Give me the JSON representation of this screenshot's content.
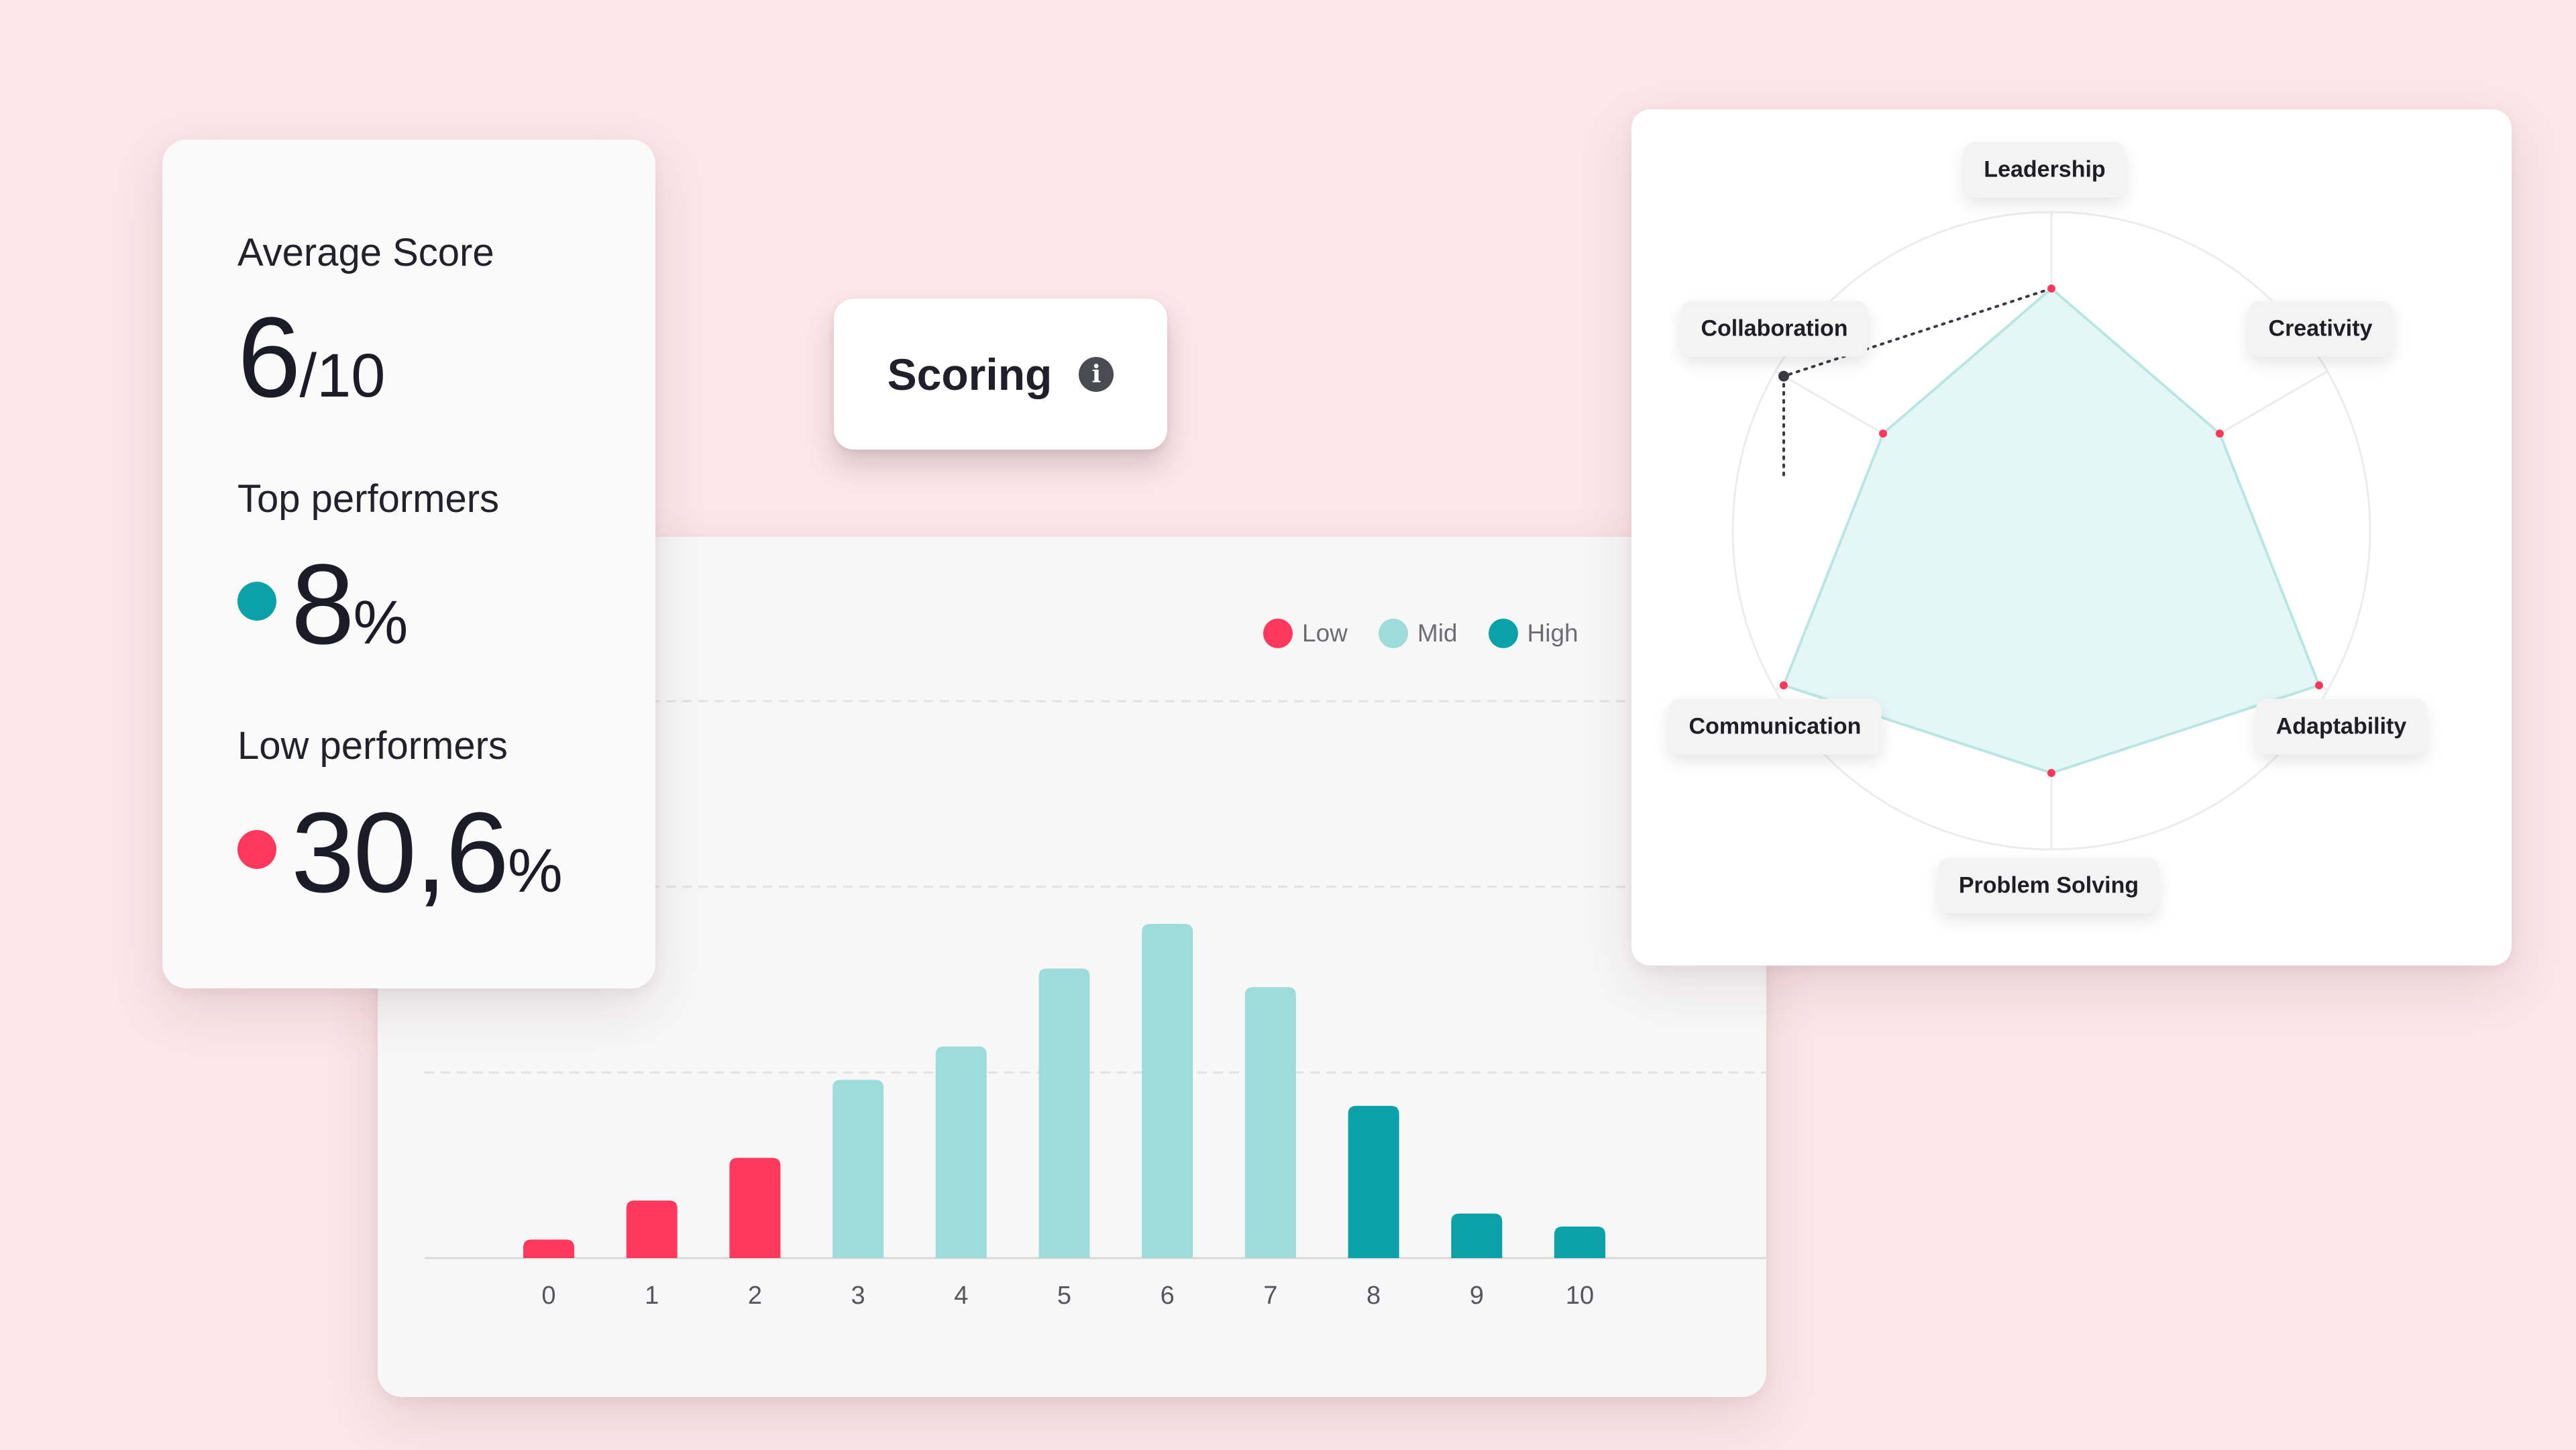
{
  "colors": {
    "low": "#ff385c",
    "mid": "#9edcdc",
    "high": "#0aa2a8",
    "background": "#fce6e9"
  },
  "stats": {
    "average_label": "Average Score",
    "average_value": "6",
    "average_suffix": "/10",
    "top_label": "Top performers",
    "top_value": "8",
    "top_suffix": "%",
    "low_label": "Low performers",
    "low_value": "30,6",
    "low_suffix": "%"
  },
  "scoring": {
    "label": "Scoring",
    "icon": "info-icon"
  },
  "chart_data": [
    {
      "type": "bar",
      "categories": [
        "0",
        "1",
        "2",
        "3",
        "4",
        "5",
        "6",
        "7",
        "8",
        "9",
        "10"
      ],
      "values": [
        0.5,
        1.55,
        2.7,
        4.8,
        5.7,
        7.8,
        9.0,
        7.3,
        4.1,
        1.2,
        0.85
      ],
      "groups": [
        "Low",
        "Low",
        "Low",
        "Mid",
        "Mid",
        "Mid",
        "Mid",
        "Mid",
        "High",
        "High",
        "High"
      ],
      "legend": [
        {
          "name": "Low",
          "color": "#ff385c"
        },
        {
          "name": "Mid",
          "color": "#9edcdc"
        },
        {
          "name": "High",
          "color": "#0aa2a8"
        }
      ],
      "ylim": [
        0,
        15
      ],
      "grid": true,
      "legend_position": "top-right",
      "title": "",
      "xlabel": "",
      "ylabel": ""
    },
    {
      "type": "radar",
      "axes": [
        "Leadership",
        "Creativity",
        "Adaptability",
        "Problem Solving",
        "Communication",
        "Collaboration"
      ],
      "values": [
        0.76,
        0.61,
        0.97,
        0.76,
        0.97,
        0.61
      ],
      "reference": [
        0.76,
        null,
        null,
        null,
        null,
        0.97
      ],
      "range": [
        0,
        1
      ],
      "rings": 2
    }
  ]
}
